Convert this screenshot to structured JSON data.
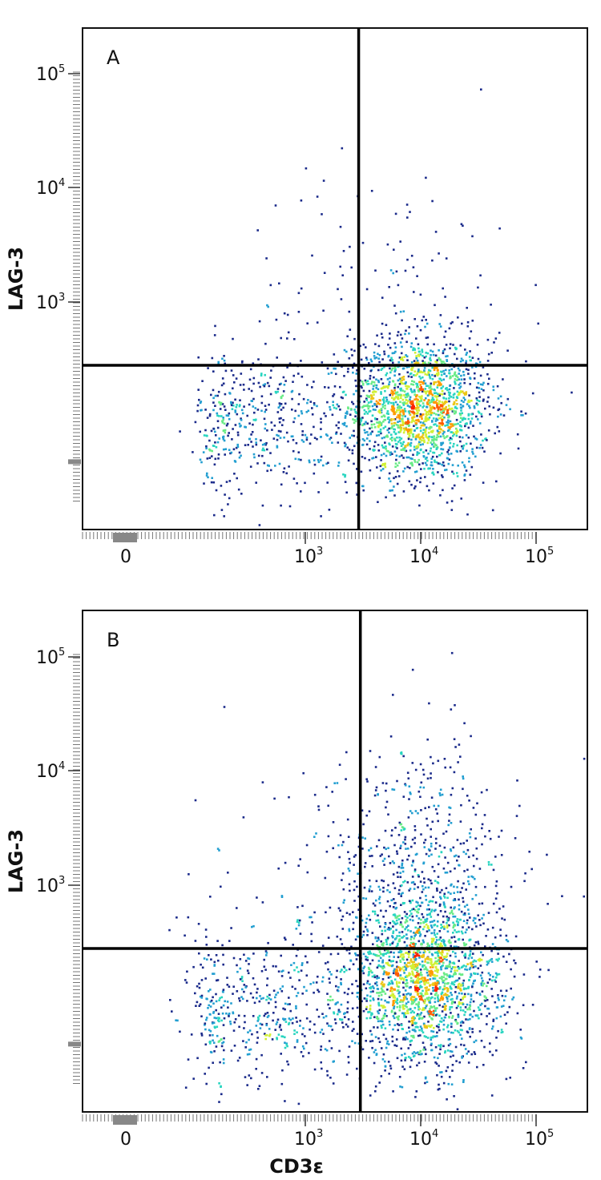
{
  "chart_data": [
    {
      "type": "scatter",
      "panel_label": "A",
      "xlabel": "",
      "ylabel": "LAG-3",
      "x_scale": "biexponential",
      "y_scale": "biexponential",
      "x_tick_labels": [
        {
          "base": "0",
          "exp": ""
        },
        {
          "base": "10",
          "exp": "3"
        },
        {
          "base": "10",
          "exp": "4"
        },
        {
          "base": "10",
          "exp": "5"
        }
      ],
      "y_tick_labels": [
        {
          "base": "10",
          "exp": "3"
        },
        {
          "base": "10",
          "exp": "4"
        },
        {
          "base": "10",
          "exp": "5"
        }
      ],
      "gate": {
        "x": 2900,
        "y": 280
      },
      "populations": [
        {
          "name": "",
          "center": [
            9500,
            120
          ],
          "spread": [
            0.14,
            0.14
          ],
          "count": 1700,
          "peak_color": "#ff2a00"
        },
        {
          "name": "",
          "center": [
            360,
            90
          ],
          "spread": [
            0.2,
            0.14
          ],
          "count": 420,
          "peak_color": "#22e0b0"
        },
        {
          "name": "",
          "center": [
            5000,
            650
          ],
          "spread": [
            0.28,
            0.32
          ],
          "count": 180,
          "peak_color": "#1e3ea0"
        }
      ],
      "color_scale": [
        "#1a2a8a",
        "#2f5fc0",
        "#1fb8d8",
        "#30e8b0",
        "#d8f030",
        "#ffa000",
        "#ff2000"
      ],
      "grid": false,
      "legend": "none"
    },
    {
      "type": "scatter",
      "panel_label": "B",
      "xlabel": "CD3ε",
      "ylabel": "LAG-3",
      "x_scale": "biexponential",
      "y_scale": "biexponential",
      "x_tick_labels": [
        {
          "base": "0",
          "exp": ""
        },
        {
          "base": "10",
          "exp": "3"
        },
        {
          "base": "10",
          "exp": "4"
        },
        {
          "base": "10",
          "exp": "5"
        }
      ],
      "y_tick_labels": [
        {
          "base": "10",
          "exp": "3"
        },
        {
          "base": "10",
          "exp": "4"
        },
        {
          "base": "10",
          "exp": "5"
        }
      ],
      "gate": {
        "x": 3000,
        "y": 280
      },
      "populations": [
        {
          "name": "",
          "center": [
            10500,
            140
          ],
          "spread": [
            0.15,
            0.16
          ],
          "count": 1700,
          "peak_color": "#ff2a00"
        },
        {
          "name": "",
          "center": [
            9500,
            1000
          ],
          "spread": [
            0.18,
            0.28
          ],
          "count": 650,
          "peak_color": "#2f5fc0"
        },
        {
          "name": "",
          "center": [
            360,
            80
          ],
          "spread": [
            0.22,
            0.15
          ],
          "count": 430,
          "peak_color": "#30e8b0"
        },
        {
          "name": "",
          "center": [
            2000,
            500
          ],
          "spread": [
            0.35,
            0.35
          ],
          "count": 150,
          "peak_color": "#1e3ea0"
        }
      ],
      "color_scale": [
        "#1a2a8a",
        "#2f5fc0",
        "#1fb8d8",
        "#30e8b0",
        "#d8f030",
        "#ffa000",
        "#ff2000"
      ],
      "grid": false,
      "legend": "none"
    }
  ]
}
